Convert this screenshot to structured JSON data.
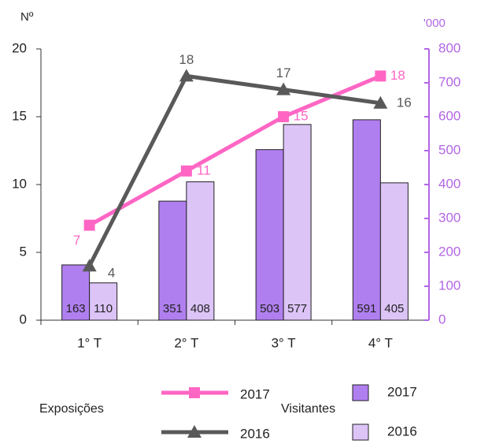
{
  "chart_data": {
    "type": "combo",
    "ylabel": "Nº",
    "y2label": "'000",
    "categories": [
      "1° T",
      "2° T",
      "3° T",
      "4° T"
    ],
    "ylim": [
      0,
      20
    ],
    "yticks": [
      0,
      5,
      10,
      15,
      20
    ],
    "y2lim": [
      0,
      800
    ],
    "y2ticks": [
      0,
      100,
      200,
      300,
      400,
      500,
      600,
      700,
      800
    ],
    "y2color": "#b366e6",
    "line_legend_title": "Exposições",
    "bar_legend_title": "Visitantes",
    "series": [
      {
        "name": "2017",
        "type": "bar",
        "axis": "y2",
        "color": "#b07fef",
        "values": [
          163,
          351,
          503,
          591
        ]
      },
      {
        "name": "2016",
        "type": "bar",
        "axis": "y2",
        "color": "#dcc4f7",
        "values": [
          110,
          408,
          577,
          405
        ]
      },
      {
        "name": "2017",
        "type": "line",
        "axis": "y",
        "marker": "square",
        "color": "#ff66c4",
        "values": [
          7,
          11,
          15,
          18
        ]
      },
      {
        "name": "2016",
        "type": "line",
        "axis": "y",
        "marker": "triangle",
        "color": "#595959",
        "values": [
          4,
          18,
          17,
          16
        ]
      }
    ]
  }
}
